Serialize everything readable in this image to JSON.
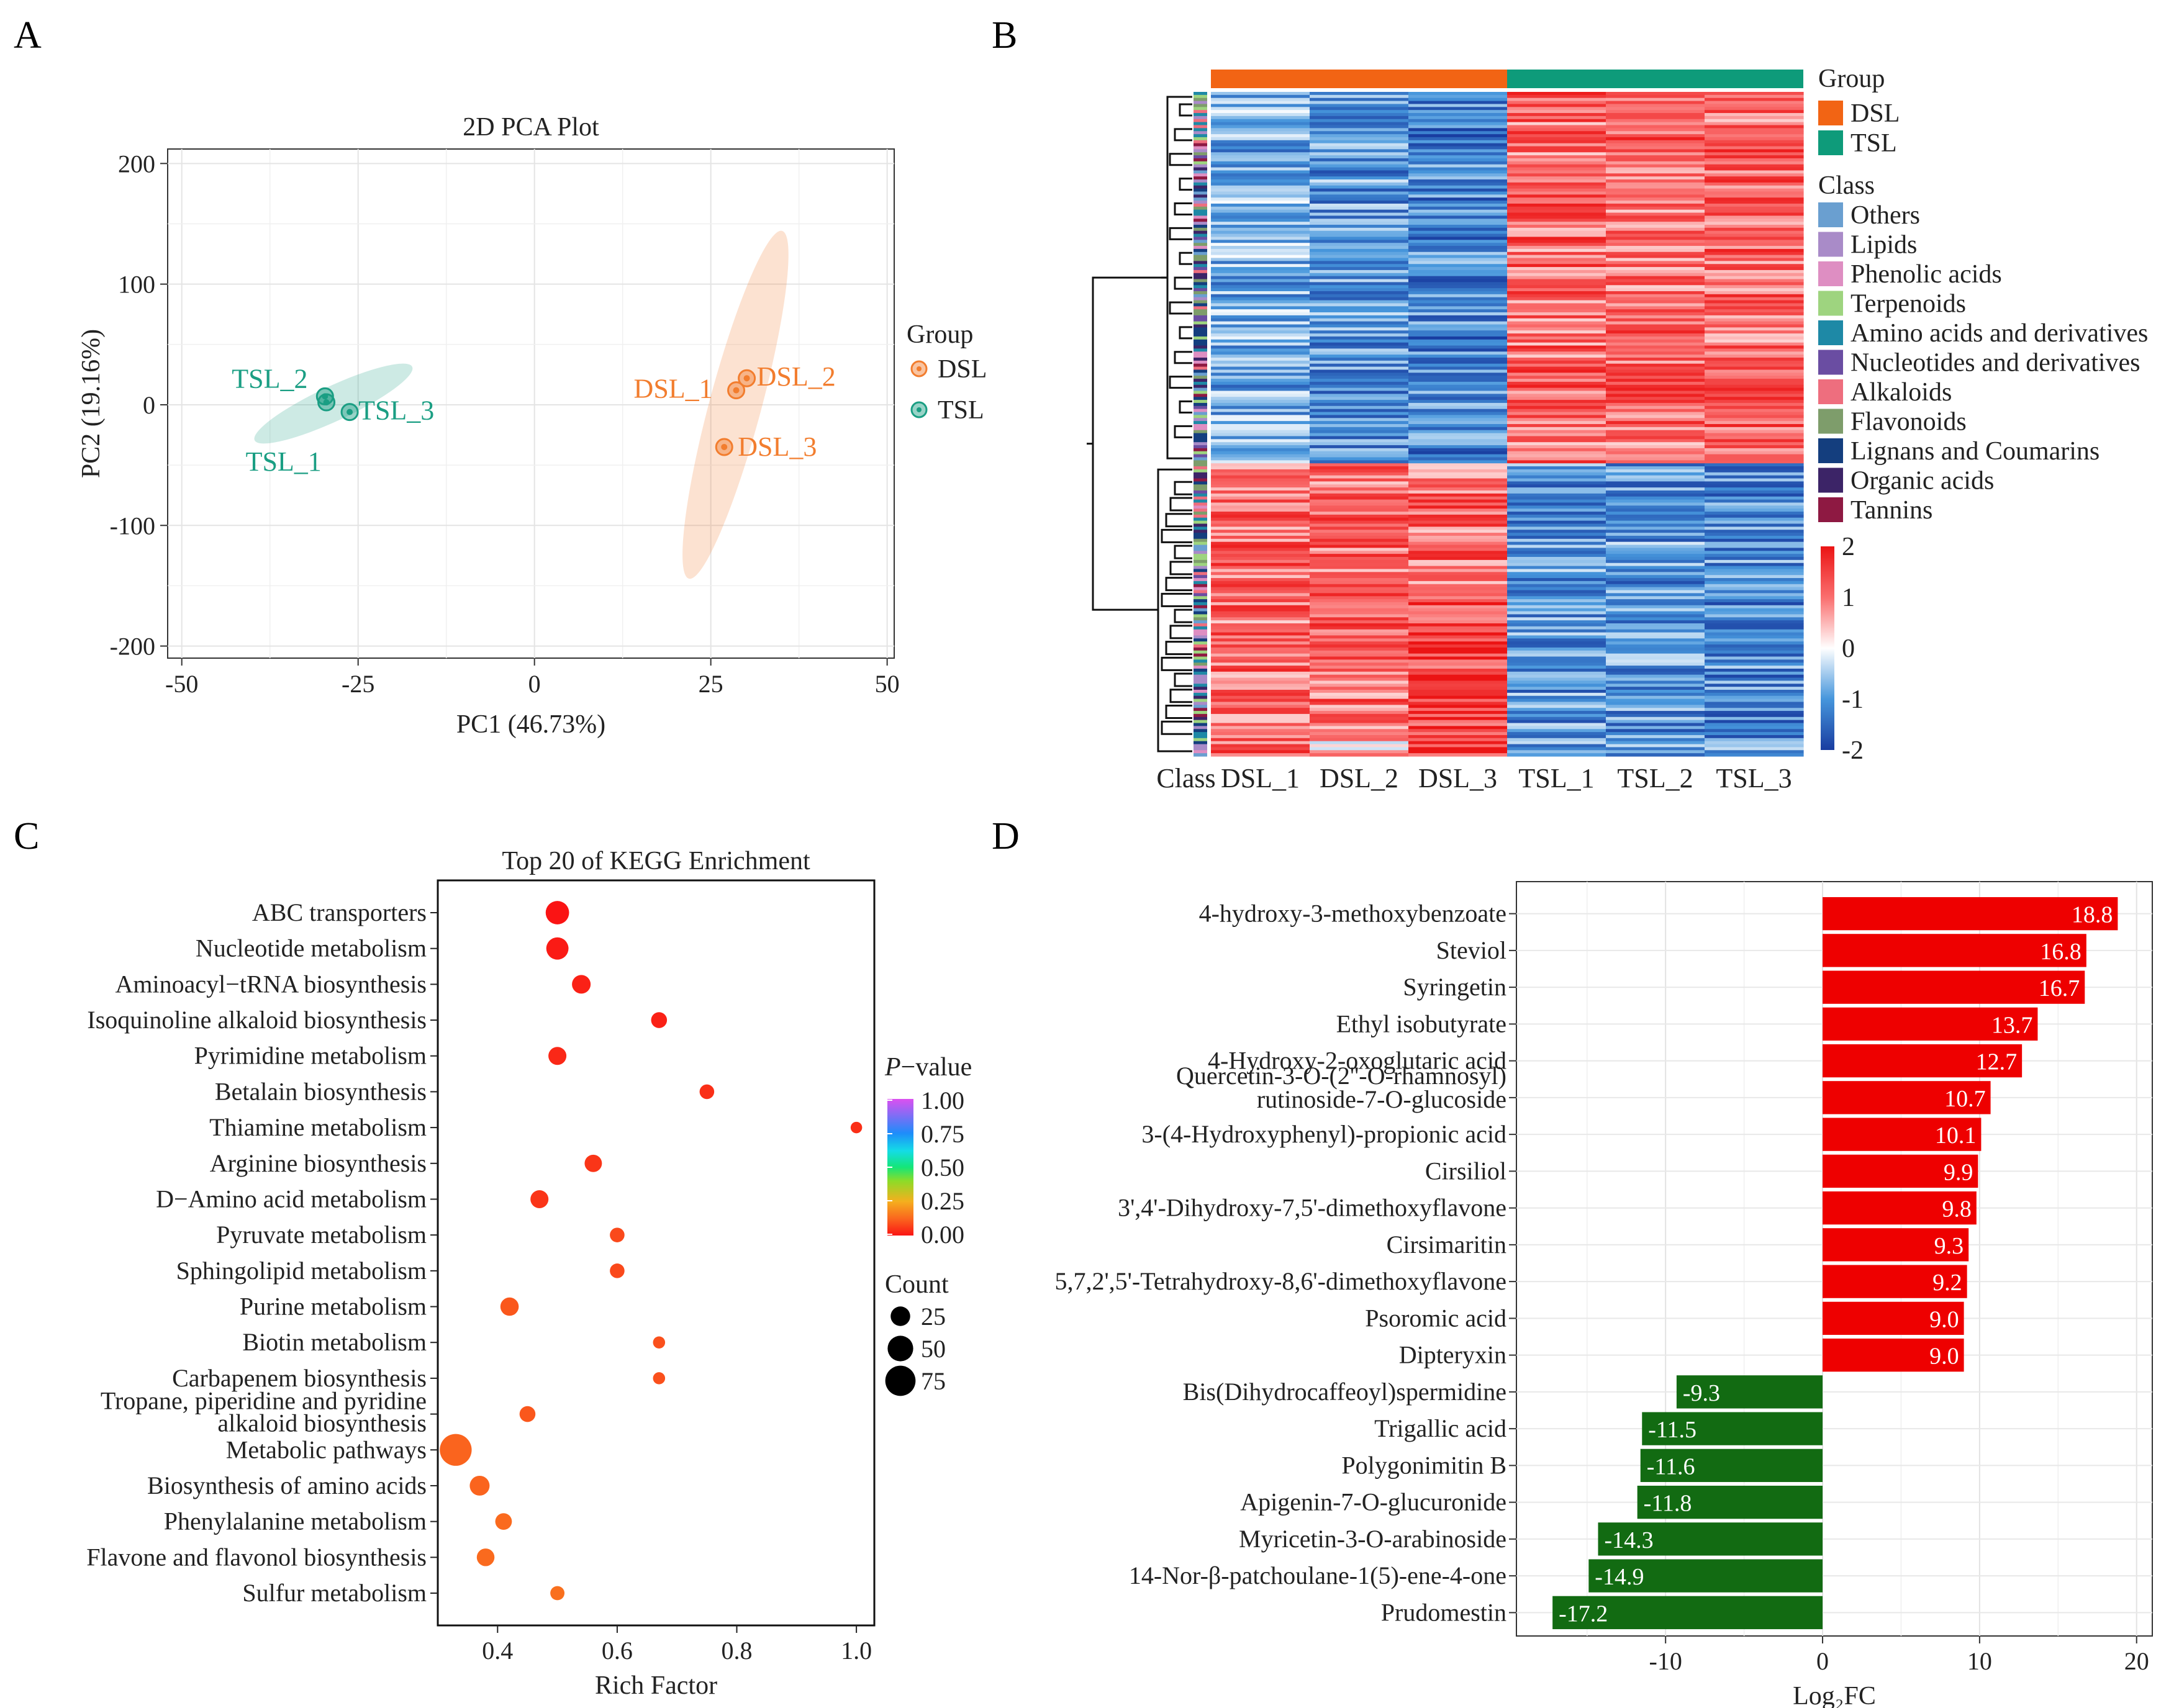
{
  "panels": {
    "a": "A",
    "b": "B",
    "c": "C",
    "d": "D"
  },
  "colors": {
    "dsl": "#F27D2E",
    "tsl": "#1A9E83",
    "dsl_bar": "#F26414",
    "tsl_bar": "#0E9B7A",
    "up": "#EE0000",
    "down": "#126B12"
  },
  "chart_data": [
    {
      "type": "scatter",
      "id": "pca",
      "title": "2D PCA Plot",
      "xlabel": "PC1 (46.73%)",
      "ylabel": "PC2 (19.16%)",
      "xlim": [
        -52,
        51
      ],
      "ylim": [
        -210,
        212
      ],
      "xticks": [
        -50,
        -25,
        0,
        25,
        50
      ],
      "yticks": [
        -200,
        -100,
        0,
        100,
        200
      ],
      "xtick_labels": [
        "-50",
        "-25",
        "0",
        "25",
        "50"
      ],
      "ytick_labels": [
        "-200",
        "-100",
        "0",
        "100",
        "200"
      ],
      "legend_title": "Group",
      "series": [
        {
          "name": "DSL",
          "points": [
            {
              "label": "DSL_1",
              "x": 28.6,
              "y": 12
            },
            {
              "label": "DSL_2",
              "x": 30.1,
              "y": 22
            },
            {
              "label": "DSL_3",
              "x": 26.9,
              "y": -35
            }
          ]
        },
        {
          "name": "TSL",
          "points": [
            {
              "label": "TSL_1",
              "x": -29.5,
              "y": 2
            },
            {
              "label": "TSL_2",
              "x": -29.7,
              "y": 7
            },
            {
              "label": "TSL_3",
              "x": -26.2,
              "y": -6
            }
          ]
        }
      ],
      "ellipses": [
        {
          "group": "DSL",
          "cx": 28.5,
          "cy": 0,
          "rx": 34,
          "ry": 7,
          "angle_deg": -75
        },
        {
          "group": "TSL",
          "cx": -28.5,
          "cy": 1,
          "rx": 12,
          "ry": 3.2,
          "angle_deg": -25
        }
      ]
    },
    {
      "type": "heatmap",
      "id": "heatmap",
      "columns": [
        "DSL_1",
        "DSL_2",
        "DSL_3",
        "TSL_1",
        "TSL_2",
        "TSL_3"
      ],
      "class_label": "Class",
      "group_legend_title": "Group",
      "groups": [
        {
          "name": "DSL"
        },
        {
          "name": "TSL"
        }
      ],
      "class_legend_title": "Class",
      "classes": [
        {
          "name": "Others",
          "color": "#6A9FD0"
        },
        {
          "name": "Lipids",
          "color": "#A98BC8"
        },
        {
          "name": "Phenolic acids",
          "color": "#DE8EC2"
        },
        {
          "name": "Terpenoids",
          "color": "#9ED47F"
        },
        {
          "name": "Amino acids and derivatives",
          "color": "#1E89A6"
        },
        {
          "name": "Nucleotides and derivatives",
          "color": "#6A4DA2"
        },
        {
          "name": "Alkaloids",
          "color": "#EE6E7E"
        },
        {
          "name": "Flavonoids",
          "color": "#7E9D6B"
        },
        {
          "name": "Lignans and Coumarins",
          "color": "#143E7E"
        },
        {
          "name": "Organic acids",
          "color": "#3C2467"
        },
        {
          "name": "Tannins",
          "color": "#8E1942"
        }
      ],
      "scale_min": -2,
      "scale_max": 2,
      "scale_labels": [
        "2",
        "1",
        "0",
        "-1",
        "-2"
      ],
      "n_rows": 220,
      "cluster_split_fraction": 0.56
    },
    {
      "type": "scatter",
      "id": "kegg",
      "title": "Top 20 of KEGG Enrichment",
      "xlabel": "Rich Factor",
      "xlim": [
        0.3,
        1.03
      ],
      "xticks": [
        0.4,
        0.6,
        0.8,
        1.0
      ],
      "xtick_labels": [
        "0.4",
        "0.6",
        "0.8",
        "1.0"
      ],
      "color_legend_title": "P−value",
      "color_legend_title_main": "P",
      "color_legend_title_rest": "−value",
      "color_ticks": [
        "1.00",
        "0.75",
        "0.50",
        "0.25",
        "0.00"
      ],
      "size_legend_title": "Count",
      "size_ticks": [
        "25",
        "50",
        "75"
      ],
      "pathways": [
        {
          "name": "ABC transporters",
          "rich": 0.5,
          "p": 0.0,
          "count": 40
        },
        {
          "name": "Nucleotide metabolism",
          "rich": 0.5,
          "p": 0.01,
          "count": 35
        },
        {
          "name": "Aminoacyl−tRNA biosynthesis",
          "rich": 0.54,
          "p": 0.02,
          "count": 22
        },
        {
          "name": "Isoquinoline alkaloid biosynthesis",
          "rich": 0.67,
          "p": 0.02,
          "count": 14
        },
        {
          "name": "Pyrimidine metabolism",
          "rich": 0.5,
          "p": 0.03,
          "count": 20
        },
        {
          "name": "Betalain biosynthesis",
          "rich": 0.75,
          "p": 0.04,
          "count": 11
        },
        {
          "name": "Thiamine metabolism",
          "rich": 1.0,
          "p": 0.04,
          "count": 5
        },
        {
          "name": "Arginine biosynthesis",
          "rich": 0.56,
          "p": 0.05,
          "count": 18
        },
        {
          "name": "D−Amino acid metabolism",
          "rich": 0.47,
          "p": 0.05,
          "count": 20
        },
        {
          "name": "Pyruvate metabolism",
          "rich": 0.6,
          "p": 0.08,
          "count": 11
        },
        {
          "name": "Sphingolipid metabolism",
          "rich": 0.6,
          "p": 0.08,
          "count": 11
        },
        {
          "name": "Purine metabolism",
          "rich": 0.42,
          "p": 0.1,
          "count": 21
        },
        {
          "name": "Biotin metabolism",
          "rich": 0.67,
          "p": 0.09,
          "count": 6
        },
        {
          "name": "Carbapenem biosynthesis",
          "rich": 0.67,
          "p": 0.09,
          "count": 6
        },
        {
          "name": "Tropane, piperidine and pyridine alkaloid biosynthesis",
          "rich": 0.45,
          "p": 0.1,
          "count": 14
        },
        {
          "name": "Metabolic pathways",
          "rich": 0.33,
          "p": 0.12,
          "count": 85
        },
        {
          "name": "Biosynthesis of amino acids",
          "rich": 0.37,
          "p": 0.12,
          "count": 26
        },
        {
          "name": "Phenylalanine metabolism",
          "rich": 0.41,
          "p": 0.13,
          "count": 16
        },
        {
          "name": "Flavone and flavonol biosynthesis",
          "rich": 0.38,
          "p": 0.13,
          "count": 19
        },
        {
          "name": "Sulfur metabolism",
          "rich": 0.5,
          "p": 0.14,
          "count": 10
        }
      ],
      "pathway_label_lines": {
        "Tropane, piperidine and pyridine alkaloid biosynthesis": [
          "Tropane, piperidine and pyridine",
          "alkaloid biosynthesis"
        ]
      }
    },
    {
      "type": "bar",
      "id": "log2fc",
      "orientation": "horizontal",
      "xlabel": "Log₂FC",
      "xlim": [
        -19.5,
        21
      ],
      "xticks": [
        -10,
        0,
        10,
        20
      ],
      "xtick_labels": [
        "-10",
        "0",
        "10",
        "20"
      ],
      "categories": [
        "4-hydroxy-3-methoxybenzoate",
        "Steviol",
        "Syringetin",
        "Ethyl isobutyrate",
        "4-Hydroxy-2-oxoglutaric acid",
        "Quercetin-3-O-(2''-O-rhamnosyl) rutinoside-7-O-glucoside",
        "3-(4-Hydroxyphenyl)-propionic acid",
        "Cirsiliol",
        "3',4'-Dihydroxy-7,5'-dimethoxyflavone",
        "Cirsimaritin",
        "5,7,2',5'-Tetrahydroxy-8,6'-dimethoxyflavone",
        "Psoromic acid",
        "Dipteryxin",
        "Bis(Dihydrocaffeoyl)spermidine",
        "Trigallic acid",
        "Polygonimitin B",
        "Apigenin-7-O-glucuronide",
        "Myricetin-3-O-arabinoside",
        "14-Nor-β-patchoulane-1(5)-ene-4-one",
        "Prudomestin"
      ],
      "category_label_lines": {
        "Quercetin-3-O-(2''-O-rhamnosyl) rutinoside-7-O-glucoside": [
          "Quercetin-3-O-(2''-O-rhamnosyl)",
          "rutinoside-7-O-glucoside"
        ]
      },
      "values": [
        18.8,
        16.8,
        16.7,
        13.7,
        12.7,
        10.7,
        10.1,
        9.9,
        9.8,
        9.3,
        9.2,
        9.0,
        9.0,
        -9.3,
        -11.5,
        -11.6,
        -11.8,
        -14.3,
        -14.9,
        -17.2
      ],
      "value_labels": [
        "18.8",
        "16.8",
        "16.7",
        "13.7",
        "12.7",
        "10.7",
        "10.1",
        "9.9",
        "9.8",
        "9.3",
        "9.2",
        "9.0",
        "9.0",
        "-9.3",
        "-11.5",
        "-11.6",
        "-11.8",
        "-14.3",
        "-14.9",
        "-17.2"
      ]
    }
  ]
}
